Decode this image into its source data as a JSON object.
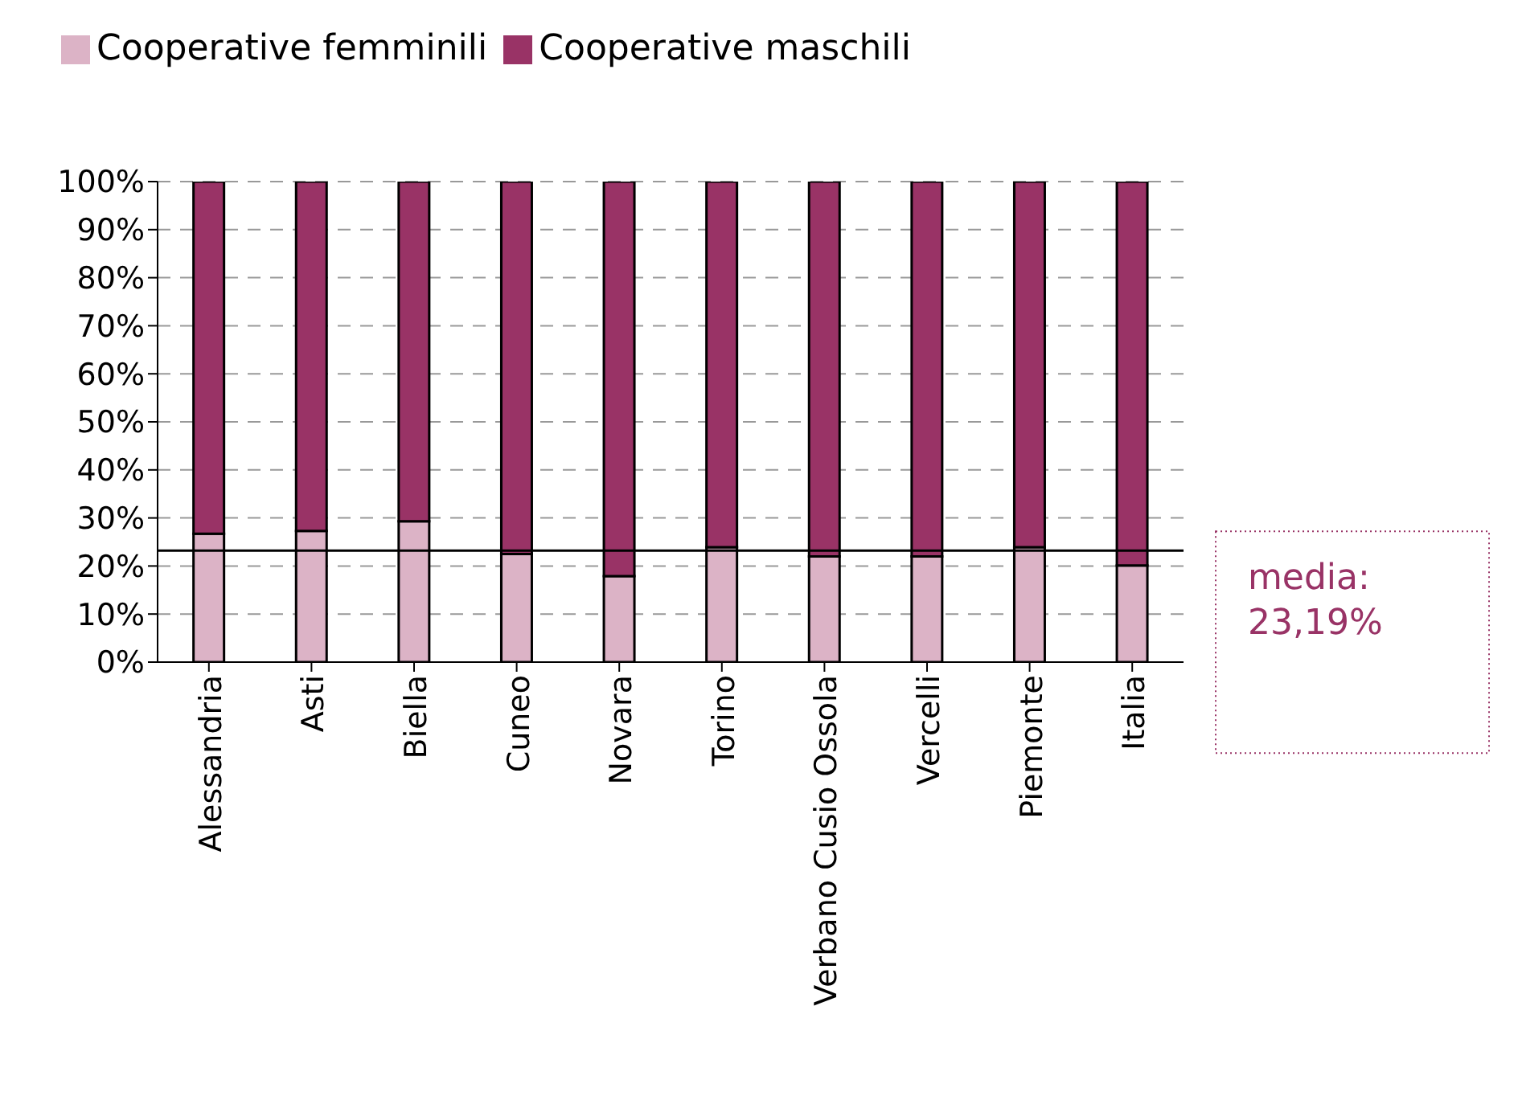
{
  "chart_data": {
    "type": "bar",
    "stacked": true,
    "categories": [
      "Alessandria",
      "Asti",
      "Biella",
      "Cuneo",
      "Novara",
      "Torino",
      "Verbano Cusio Ossola",
      "Vercelli",
      "Piemonte",
      "Italia"
    ],
    "series": [
      {
        "name": "Cooperative femminili",
        "color": "#dcb3c6",
        "values": [
          26.7,
          27.3,
          29.3,
          22.5,
          17.9,
          23.9,
          22.0,
          22.0,
          23.9,
          20.1
        ]
      },
      {
        "name": "Cooperative maschili",
        "color": "#993366",
        "values": [
          73.3,
          72.7,
          70.7,
          77.5,
          82.1,
          76.1,
          78.0,
          78.0,
          76.1,
          79.9
        ]
      }
    ],
    "ylim": [
      0,
      100
    ],
    "yticks": [
      {
        "value": 0,
        "label": "0%"
      },
      {
        "value": 10,
        "label": "10%"
      },
      {
        "value": 20,
        "label": "20%"
      },
      {
        "value": 30,
        "label": "30%"
      },
      {
        "value": 40,
        "label": "40%"
      },
      {
        "value": 50,
        "label": "50%"
      },
      {
        "value": 60,
        "label": "60%"
      },
      {
        "value": 70,
        "label": "70%"
      },
      {
        "value": 80,
        "label": "80%"
      },
      {
        "value": 90,
        "label": "90%"
      },
      {
        "value": 100,
        "label": "100%"
      }
    ],
    "grid": "y",
    "legend": "top left",
    "ref_lines": [
      {
        "axis": "y",
        "value": 23.19,
        "label": "media: 23,19%",
        "color": "#000000"
      }
    ]
  }
}
